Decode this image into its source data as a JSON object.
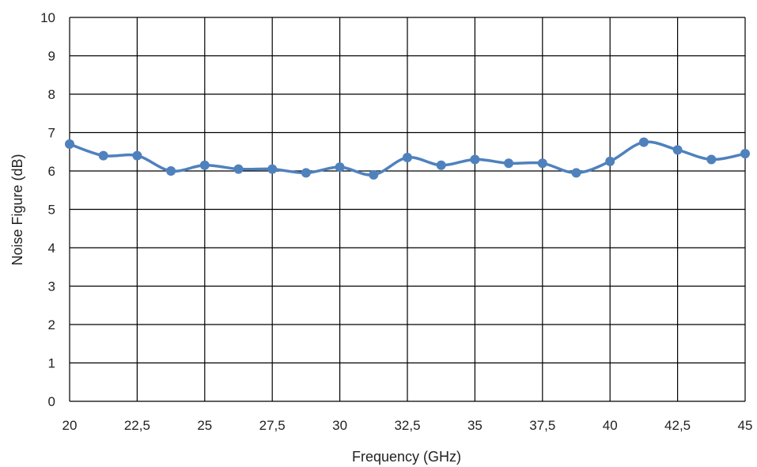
{
  "chart_data": {
    "type": "line",
    "title": "",
    "xlabel": "Frequency (GHz)",
    "ylabel": "Noise Figure (dB)",
    "xlim": [
      20,
      45
    ],
    "ylim": [
      0,
      10
    ],
    "x_ticks": [
      "20",
      "22,5",
      "25",
      "27,5",
      "30",
      "32,5",
      "35",
      "37,5",
      "40",
      "42,5",
      "45"
    ],
    "y_ticks": [
      "0",
      "1",
      "2",
      "3",
      "4",
      "5",
      "6",
      "7",
      "8",
      "9",
      "10"
    ],
    "grid": true,
    "legend": "none",
    "series": [
      {
        "color": "#4f81bd",
        "x": [
          20,
          21.25,
          22.5,
          23.75,
          25,
          26.25,
          27.5,
          28.75,
          30,
          31.25,
          32.5,
          33.75,
          35,
          36.25,
          37.5,
          38.75,
          40,
          41.25,
          42.5,
          43.75,
          45
        ],
        "y": [
          6.7,
          6.4,
          6.4,
          6.0,
          6.15,
          6.05,
          6.05,
          5.95,
          6.1,
          5.9,
          6.35,
          6.15,
          6.3,
          6.2,
          6.2,
          5.95,
          6.25,
          6.75,
          6.55,
          6.3,
          6.45
        ]
      }
    ]
  }
}
